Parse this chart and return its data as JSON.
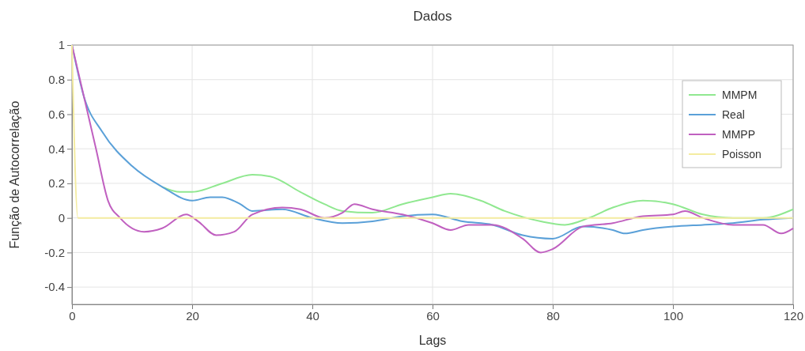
{
  "chart_data": {
    "type": "line",
    "title": "Dados",
    "xlabel": "Lags",
    "ylabel": "Função de Autocorrelação",
    "xlim": [
      0,
      120
    ],
    "xticks": [
      0,
      20,
      40,
      60,
      80,
      100,
      120
    ],
    "ylim": [
      -0.5,
      1
    ],
    "yticks": [
      -0.4,
      -0.2,
      0,
      0.2,
      0.4,
      0.6,
      0.8,
      1
    ],
    "grid": true,
    "legend": "top right",
    "line_style": "solid",
    "marker": "none",
    "series": [
      {
        "name": "MMPM",
        "color": "#90e890",
        "x": [
          15,
          18,
          20,
          25,
          30,
          33,
          38,
          42,
          45,
          50,
          55,
          60,
          63,
          68,
          72,
          78,
          82,
          86,
          90,
          95,
          100,
          105,
          110,
          115,
          120
        ],
        "values": [
          0.18,
          0.15,
          0.15,
          0.2,
          0.25,
          0.24,
          0.15,
          0.08,
          0.04,
          0.03,
          0.08,
          0.12,
          0.14,
          0.1,
          0.04,
          -0.02,
          -0.04,
          0,
          0.06,
          0.1,
          0.08,
          0.02,
          0,
          0,
          0.05
        ]
      },
      {
        "name": "Real",
        "color": "#5aa0d8",
        "x": [
          0,
          2,
          5,
          10,
          15,
          20,
          23,
          25,
          28,
          30,
          35,
          40,
          45,
          50,
          55,
          60,
          65,
          70,
          75,
          80,
          85,
          90,
          92,
          95,
          100,
          105,
          110,
          115,
          120
        ],
        "values": [
          1,
          0.7,
          0.5,
          0.3,
          0.18,
          0.1,
          0.12,
          0.12,
          0.08,
          0.04,
          0.05,
          0,
          -0.03,
          -0.02,
          0.01,
          0.02,
          -0.02,
          -0.04,
          -0.1,
          -0.12,
          -0.05,
          -0.07,
          -0.09,
          -0.07,
          -0.05,
          -0.04,
          -0.03,
          -0.01,
          0
        ]
      },
      {
        "name": "MMPP",
        "color": "#c060c0",
        "x": [
          0,
          2,
          4,
          6,
          8,
          12,
          15,
          19,
          21,
          24,
          27,
          30,
          35,
          38,
          42,
          45,
          47,
          50,
          55,
          60,
          63,
          66,
          70,
          75,
          78,
          80,
          85,
          90,
          95,
          100,
          102,
          105,
          110,
          115,
          118,
          120
        ],
        "values": [
          1,
          0.7,
          0.4,
          0.1,
          0,
          -0.08,
          -0.06,
          0.02,
          -0.02,
          -0.1,
          -0.08,
          0.02,
          0.06,
          0.05,
          0,
          0.03,
          0.08,
          0.05,
          0.02,
          -0.03,
          -0.07,
          -0.04,
          -0.04,
          -0.12,
          -0.2,
          -0.18,
          -0.05,
          -0.03,
          0.01,
          0.02,
          0.04,
          0,
          -0.04,
          -0.04,
          -0.09,
          -0.06
        ]
      },
      {
        "name": "Poisson",
        "color": "#f4eca0",
        "x": [
          0,
          1,
          120
        ],
        "values": [
          1,
          0,
          0
        ]
      }
    ]
  }
}
